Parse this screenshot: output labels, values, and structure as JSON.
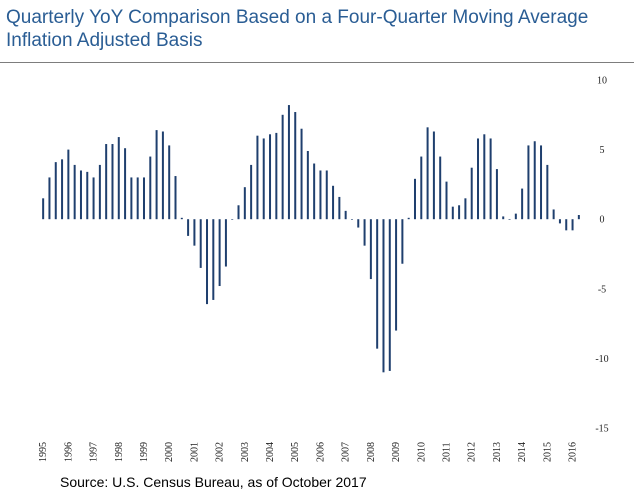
{
  "title_line1": "Quarterly YoY Comparison Based on a Four-Quarter Moving Average",
  "title_line2": "Inflation Adjusted Basis",
  "source": "Source: U.S. Census Bureau, as of October 2017",
  "colors": {
    "title": "#2a5d94",
    "bar": "#1f3f6e",
    "rule": "#7d7d7d"
  },
  "chart_data": {
    "type": "bar",
    "title": "Quarterly YoY Comparison Based on a Four-Quarter Moving Average",
    "subtitle": "Inflation Adjusted Basis",
    "xlabel": "",
    "ylabel": "",
    "ylim": [
      -15,
      10
    ],
    "y_ticks": [
      10,
      5,
      0,
      -5,
      -10,
      -15
    ],
    "y_axis_position": "right",
    "grid": false,
    "x_start": "1995 Q1",
    "x_labels": [
      "1995",
      "1996",
      "1997",
      "1998",
      "1999",
      "2000",
      "2001",
      "2002",
      "2003",
      "2004",
      "2005",
      "2006",
      "2007",
      "2008",
      "2009",
      "2010",
      "2011",
      "2012",
      "2013",
      "2014",
      "2015",
      "2016"
    ],
    "series": [
      {
        "values": [
          1.5,
          3.0,
          4.1,
          4.3,
          5.0,
          3.9,
          3.5,
          3.4,
          3.0,
          3.9,
          5.4,
          5.4,
          5.9,
          5.1,
          3.0,
          3.0,
          3.0,
          4.5,
          6.4,
          6.3,
          5.3,
          3.1,
          0.1,
          -1.2,
          -1.9,
          -3.5,
          -6.1,
          -5.8,
          -4.8,
          -3.4,
          0.0,
          1.0,
          2.3,
          3.9,
          6.0,
          5.8,
          6.1,
          6.2,
          7.5,
          8.2,
          7.7,
          6.5,
          4.9,
          4.0,
          3.5,
          3.5,
          2.4,
          1.6,
          0.6,
          0.0,
          -0.6,
          -1.9,
          -4.3,
          -9.3,
          -11.0,
          -10.9,
          -8.0,
          -3.2,
          0.1,
          2.9,
          4.5,
          6.6,
          6.3,
          4.5,
          2.7,
          0.9,
          1.0,
          1.5,
          3.7,
          5.8,
          6.1,
          5.8,
          3.6,
          0.2,
          0.0,
          0.4,
          2.2,
          5.3,
          5.6,
          5.3,
          3.9,
          0.7,
          -0.3,
          -0.8,
          -0.8,
          0.3
        ]
      }
    ]
  }
}
